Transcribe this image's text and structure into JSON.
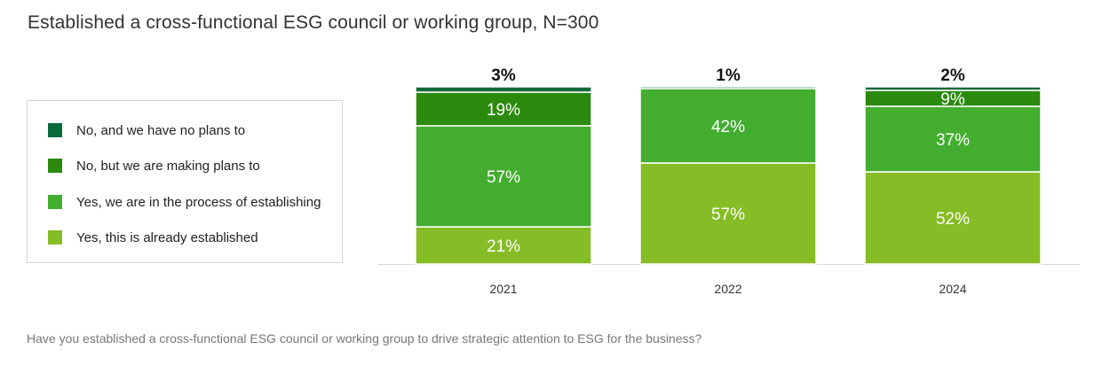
{
  "title": "Established a cross-functional ESG council or working group, N=300",
  "footnote": "Have you established a cross-functional ESG council or working group to drive strategic attention to ESG for the business?",
  "legend": [
    {
      "label": "No, and we have no plans to",
      "color": "#0b6b3a"
    },
    {
      "label": "No, but we are making plans to",
      "color": "#2b8a0e"
    },
    {
      "label": "Yes, we are in the process of establishing",
      "color": "#43ad2f"
    },
    {
      "label": "Yes, this is already established",
      "color": "#86bc25"
    }
  ],
  "chart_data": {
    "type": "bar",
    "stacked": true,
    "categories": [
      "2021",
      "2022",
      "2024"
    ],
    "series": [
      {
        "name": "Yes, this is already established",
        "values": [
          21,
          57,
          52
        ],
        "labels": [
          "21%",
          "57%",
          "52%"
        ],
        "color": "#86bc25"
      },
      {
        "name": "Yes, we are in the process of establishing",
        "values": [
          57,
          42,
          37
        ],
        "labels": [
          "57%",
          "42%",
          "37%"
        ],
        "color": "#43ad2f"
      },
      {
        "name": "No, but we are making plans to",
        "values": [
          19,
          0,
          9
        ],
        "labels": [
          "19%",
          "",
          "9%"
        ],
        "color": "#2b8a0e"
      },
      {
        "name": "No, and we have no plans to",
        "values": [
          3,
          1,
          2
        ],
        "labels": [
          "3%",
          "1%",
          "2%"
        ],
        "color": "#0b6b3a"
      }
    ],
    "legend_position": "left",
    "grid": false,
    "ylim": [
      0,
      100
    ]
  }
}
